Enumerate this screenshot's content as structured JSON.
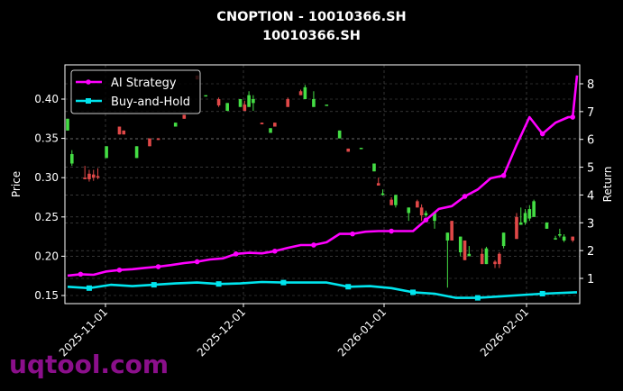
{
  "title": {
    "line1": "CNOPTION - 10010366.SH",
    "line2": "10010366.SH"
  },
  "watermark": "uqtool.com",
  "colors": {
    "background": "#000000",
    "up": "#44dd44",
    "down": "#e04848",
    "ai_strategy": "#ff00ff",
    "buy_and_hold": "#00e5ee",
    "grid": "#555555",
    "axis": "#ffffff",
    "watermark": "#8b0f8b"
  },
  "chart_data": {
    "type": "line",
    "title": "CNOPTION - 10010366.SH\n10010366.SH",
    "xlabel": "",
    "ylabel_left": "Price",
    "ylabel_right": "Return",
    "left_ylim": [
      0.143,
      0.44
    ],
    "right_ylim": [
      0.1,
      8.6
    ],
    "left_ticks": [
      "0.15",
      "0.20",
      "0.25",
      "0.30",
      "0.35",
      "0.40"
    ],
    "right_ticks": [
      "1",
      "2",
      "3",
      "4",
      "5",
      "6",
      "7",
      "8"
    ],
    "x_ticks": [
      "2025-11-01",
      "2025-12-01",
      "2026-01-01",
      "2026-02-01"
    ],
    "grid": true,
    "legend": {
      "position": "upper left",
      "entries": [
        "AI Strategy",
        "Buy-and-Hold"
      ]
    },
    "series": [
      {
        "name": "AI Strategy",
        "axis": "right",
        "x": [
          0,
          3,
          6,
          9,
          12,
          15,
          18,
          21,
          24,
          27,
          30,
          33,
          36,
          39,
          42,
          45,
          48,
          51,
          54,
          57,
          60,
          63,
          66,
          69,
          72,
          75,
          78,
          80,
          83,
          86,
          89,
          92,
          95,
          98,
          101,
          104,
          107,
          110,
          113,
          116,
          117,
          118
        ],
        "values": [
          1.1,
          1.15,
          1.13,
          1.25,
          1.3,
          1.33,
          1.38,
          1.42,
          1.48,
          1.55,
          1.6,
          1.68,
          1.72,
          1.88,
          1.92,
          1.9,
          1.98,
          2.1,
          2.2,
          2.2,
          2.3,
          2.6,
          2.6,
          2.68,
          2.7,
          2.7,
          2.7,
          2.7,
          3.1,
          3.5,
          3.6,
          3.95,
          4.2,
          4.6,
          4.7,
          5.8,
          6.8,
          6.2,
          6.6,
          6.8,
          6.8,
          8.3
        ]
      },
      {
        "name": "Buy-and-Hold",
        "axis": "right",
        "x": [
          0,
          5,
          10,
          15,
          20,
          25,
          30,
          35,
          40,
          45,
          50,
          55,
          60,
          65,
          70,
          75,
          80,
          85,
          90,
          95,
          100,
          105,
          110,
          118
        ],
        "values": [
          0.7,
          0.65,
          0.77,
          0.72,
          0.77,
          0.82,
          0.85,
          0.8,
          0.82,
          0.87,
          0.85,
          0.85,
          0.85,
          0.7,
          0.72,
          0.65,
          0.5,
          0.45,
          0.3,
          0.3,
          0.35,
          0.4,
          0.45,
          0.5
        ]
      }
    ],
    "candles_note": "OHLC candlesticks on left Price axis (green = up, red = down)",
    "candles": [
      {
        "x": 0,
        "o": 0.36,
        "c": 0.375,
        "h": 0.375,
        "l": 0.36
      },
      {
        "x": 1,
        "o": 0.318,
        "c": 0.33,
        "h": 0.335,
        "l": 0.315
      },
      {
        "x": 4,
        "o": 0.3,
        "c": 0.298,
        "h": 0.315,
        "l": 0.298
      },
      {
        "x": 5,
        "o": 0.305,
        "c": 0.298,
        "h": 0.31,
        "l": 0.295
      },
      {
        "x": 6,
        "o": 0.304,
        "c": 0.3,
        "h": 0.31,
        "l": 0.296
      },
      {
        "x": 7,
        "o": 0.302,
        "c": 0.3,
        "h": 0.312,
        "l": 0.298
      },
      {
        "x": 9,
        "o": 0.325,
        "c": 0.34,
        "h": 0.34,
        "l": 0.325
      },
      {
        "x": 12,
        "o": 0.365,
        "c": 0.355,
        "h": 0.365,
        "l": 0.355
      },
      {
        "x": 13,
        "o": 0.36,
        "c": 0.355,
        "h": 0.36,
        "l": 0.355
      },
      {
        "x": 16,
        "o": 0.325,
        "c": 0.34,
        "h": 0.34,
        "l": 0.325
      },
      {
        "x": 19,
        "o": 0.35,
        "c": 0.34,
        "h": 0.35,
        "l": 0.34
      },
      {
        "x": 21,
        "o": 0.35,
        "c": 0.348,
        "h": 0.35,
        "l": 0.348
      },
      {
        "x": 25,
        "o": 0.365,
        "c": 0.37,
        "h": 0.37,
        "l": 0.365
      },
      {
        "x": 27,
        "o": 0.38,
        "c": 0.375,
        "h": 0.38,
        "l": 0.375
      },
      {
        "x": 30,
        "o": 0.43,
        "c": 0.425,
        "h": 0.43,
        "l": 0.425
      },
      {
        "x": 32,
        "o": 0.405,
        "c": 0.405,
        "h": 0.405,
        "l": 0.405
      },
      {
        "x": 35,
        "o": 0.4,
        "c": 0.392,
        "h": 0.402,
        "l": 0.39
      },
      {
        "x": 37,
        "o": 0.385,
        "c": 0.395,
        "h": 0.395,
        "l": 0.385
      },
      {
        "x": 40,
        "o": 0.39,
        "c": 0.4,
        "h": 0.4,
        "l": 0.39
      },
      {
        "x": 41,
        "o": 0.393,
        "c": 0.385,
        "h": 0.398,
        "l": 0.385
      },
      {
        "x": 42,
        "o": 0.39,
        "c": 0.405,
        "h": 0.41,
        "l": 0.39
      },
      {
        "x": 43,
        "o": 0.395,
        "c": 0.4,
        "h": 0.405,
        "l": 0.385
      },
      {
        "x": 45,
        "o": 0.37,
        "c": 0.368,
        "h": 0.37,
        "l": 0.368
      },
      {
        "x": 47,
        "o": 0.357,
        "c": 0.363,
        "h": 0.363,
        "l": 0.357
      },
      {
        "x": 48,
        "o": 0.37,
        "c": 0.365,
        "h": 0.37,
        "l": 0.365
      },
      {
        "x": 51,
        "o": 0.4,
        "c": 0.39,
        "h": 0.402,
        "l": 0.39
      },
      {
        "x": 54,
        "o": 0.41,
        "c": 0.405,
        "h": 0.412,
        "l": 0.405
      },
      {
        "x": 55,
        "o": 0.4,
        "c": 0.415,
        "h": 0.418,
        "l": 0.4
      },
      {
        "x": 57,
        "o": 0.39,
        "c": 0.4,
        "h": 0.41,
        "l": 0.39
      },
      {
        "x": 60,
        "o": 0.393,
        "c": 0.393,
        "h": 0.393,
        "l": 0.393
      },
      {
        "x": 63,
        "o": 0.35,
        "c": 0.36,
        "h": 0.36,
        "l": 0.35
      },
      {
        "x": 65,
        "o": 0.337,
        "c": 0.333,
        "h": 0.337,
        "l": 0.333
      },
      {
        "x": 68,
        "o": 0.338,
        "c": 0.338,
        "h": 0.338,
        "l": 0.338
      },
      {
        "x": 71,
        "o": 0.308,
        "c": 0.318,
        "h": 0.318,
        "l": 0.308
      },
      {
        "x": 72,
        "o": 0.293,
        "c": 0.29,
        "h": 0.3,
        "l": 0.29
      },
      {
        "x": 73,
        "o": 0.278,
        "c": 0.28,
        "h": 0.285,
        "l": 0.277
      },
      {
        "x": 75,
        "o": 0.272,
        "c": 0.265,
        "h": 0.275,
        "l": 0.265
      },
      {
        "x": 76,
        "o": 0.265,
        "c": 0.278,
        "h": 0.278,
        "l": 0.262
      },
      {
        "x": 79,
        "o": 0.255,
        "c": 0.262,
        "h": 0.262,
        "l": 0.245
      },
      {
        "x": 81,
        "o": 0.27,
        "c": 0.262,
        "h": 0.272,
        "l": 0.262
      },
      {
        "x": 82,
        "o": 0.262,
        "c": 0.252,
        "h": 0.266,
        "l": 0.245
      },
      {
        "x": 83,
        "o": 0.252,
        "c": 0.255,
        "h": 0.258,
        "l": 0.25
      },
      {
        "x": 85,
        "o": 0.245,
        "c": 0.255,
        "h": 0.255,
        "l": 0.235
      },
      {
        "x": 88,
        "o": 0.22,
        "c": 0.23,
        "h": 0.23,
        "l": 0.16
      },
      {
        "x": 89,
        "o": 0.245,
        "c": 0.22,
        "h": 0.245,
        "l": 0.22
      },
      {
        "x": 91,
        "o": 0.205,
        "c": 0.225,
        "h": 0.225,
        "l": 0.2
      },
      {
        "x": 92,
        "o": 0.22,
        "c": 0.195,
        "h": 0.22,
        "l": 0.195
      },
      {
        "x": 93,
        "o": 0.2,
        "c": 0.203,
        "h": 0.213,
        "l": 0.2
      },
      {
        "x": 96,
        "o": 0.203,
        "c": 0.19,
        "h": 0.21,
        "l": 0.19
      },
      {
        "x": 97,
        "o": 0.19,
        "c": 0.21,
        "h": 0.212,
        "l": 0.19
      },
      {
        "x": 99,
        "o": 0.193,
        "c": 0.19,
        "h": 0.195,
        "l": 0.185
      },
      {
        "x": 100,
        "o": 0.203,
        "c": 0.19,
        "h": 0.205,
        "l": 0.185
      },
      {
        "x": 101,
        "o": 0.213,
        "c": 0.23,
        "h": 0.23,
        "l": 0.21
      },
      {
        "x": 104,
        "o": 0.25,
        "c": 0.222,
        "h": 0.255,
        "l": 0.222
      },
      {
        "x": 105,
        "o": 0.24,
        "c": 0.243,
        "h": 0.262,
        "l": 0.24
      },
      {
        "x": 106,
        "o": 0.243,
        "c": 0.255,
        "h": 0.26,
        "l": 0.24
      },
      {
        "x": 107,
        "o": 0.248,
        "c": 0.26,
        "h": 0.265,
        "l": 0.245
      },
      {
        "x": 108,
        "o": 0.25,
        "c": 0.27,
        "h": 0.272,
        "l": 0.25
      },
      {
        "x": 111,
        "o": 0.235,
        "c": 0.243,
        "h": 0.243,
        "l": 0.235
      },
      {
        "x": 113,
        "o": 0.223,
        "c": 0.223,
        "h": 0.226,
        "l": 0.221
      },
      {
        "x": 114,
        "o": 0.228,
        "c": 0.228,
        "h": 0.235,
        "l": 0.224
      },
      {
        "x": 115,
        "o": 0.22,
        "c": 0.225,
        "h": 0.228,
        "l": 0.218
      },
      {
        "x": 117,
        "o": 0.225,
        "c": 0.22,
        "h": 0.225,
        "l": 0.218
      }
    ]
  }
}
